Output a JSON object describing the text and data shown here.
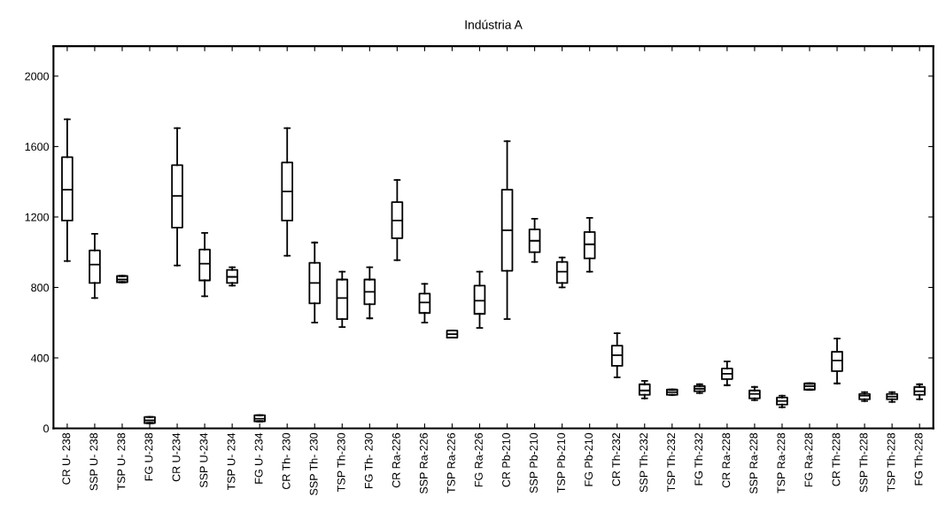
{
  "chart_data": {
    "type": "box",
    "title": "Indústria A",
    "categories": [
      "CR U- 238",
      "SSP U- 238",
      "TSP U- 238",
      "FG U-238",
      "CR U-234",
      "SSP U-234",
      "TSP U- 234",
      "FG U- 234",
      "CR Th- 230",
      "SSP Th- 230",
      "TSP Th-230",
      "FG Th- 230",
      "CR Ra-226",
      "SSP Ra-226",
      "TSP Ra-226",
      "FG Ra-226",
      "CR Pb-210",
      "SSP Pb-210",
      "TSP Pb-210",
      "FG Pb-210",
      "CR Th-232",
      "SSP Th-232",
      "TSP Th-232",
      "FG Th-232",
      "CR Ra-228",
      "SSP Ra-228",
      "TSP Ra-228",
      "FG Ra-228",
      "CR Th-228",
      "SSP Th-228",
      "TSP Th-228",
      "FG Th-228"
    ],
    "boxes": [
      {
        "low": 950,
        "q1": 1180,
        "median": 1355,
        "q3": 1540,
        "high": 1755
      },
      {
        "low": 740,
        "q1": 825,
        "median": 930,
        "q3": 1010,
        "high": 1105
      },
      {
        "low": 830,
        "q1": 830,
        "median": 845,
        "q3": 865,
        "high": 865
      },
      {
        "low": 30,
        "q1": 30,
        "median": 45,
        "q3": 65,
        "high": 65
      },
      {
        "low": 925,
        "q1": 1140,
        "median": 1320,
        "q3": 1495,
        "high": 1705
      },
      {
        "low": 750,
        "q1": 840,
        "median": 935,
        "q3": 1015,
        "high": 1110
      },
      {
        "low": 810,
        "q1": 825,
        "median": 860,
        "q3": 900,
        "high": 915
      },
      {
        "low": 40,
        "q1": 40,
        "median": 55,
        "q3": 75,
        "high": 75
      },
      {
        "low": 980,
        "q1": 1180,
        "median": 1345,
        "q3": 1510,
        "high": 1705
      },
      {
        "low": 600,
        "q1": 710,
        "median": 825,
        "q3": 940,
        "high": 1055
      },
      {
        "low": 575,
        "q1": 620,
        "median": 740,
        "q3": 845,
        "high": 890
      },
      {
        "low": 625,
        "q1": 705,
        "median": 775,
        "q3": 845,
        "high": 915
      },
      {
        "low": 955,
        "q1": 1080,
        "median": 1180,
        "q3": 1285,
        "high": 1410
      },
      {
        "low": 600,
        "q1": 655,
        "median": 715,
        "q3": 765,
        "high": 820
      },
      {
        "low": 515,
        "q1": 515,
        "median": 535,
        "q3": 555,
        "high": 555
      },
      {
        "low": 570,
        "q1": 650,
        "median": 725,
        "q3": 810,
        "high": 890
      },
      {
        "low": 620,
        "q1": 895,
        "median": 1125,
        "q3": 1355,
        "high": 1630
      },
      {
        "low": 945,
        "q1": 1000,
        "median": 1065,
        "q3": 1130,
        "high": 1190
      },
      {
        "low": 800,
        "q1": 825,
        "median": 890,
        "q3": 945,
        "high": 970
      },
      {
        "low": 890,
        "q1": 965,
        "median": 1045,
        "q3": 1115,
        "high": 1195
      },
      {
        "low": 290,
        "q1": 355,
        "median": 415,
        "q3": 470,
        "high": 540
      },
      {
        "low": 170,
        "q1": 190,
        "median": 215,
        "q3": 250,
        "high": 270
      },
      {
        "low": 190,
        "q1": 190,
        "median": 205,
        "q3": 220,
        "high": 220
      },
      {
        "low": 200,
        "q1": 210,
        "median": 225,
        "q3": 240,
        "high": 250
      },
      {
        "low": 245,
        "q1": 280,
        "median": 310,
        "q3": 340,
        "high": 380
      },
      {
        "low": 160,
        "q1": 170,
        "median": 195,
        "q3": 215,
        "high": 235
      },
      {
        "low": 120,
        "q1": 135,
        "median": 155,
        "q3": 175,
        "high": 185
      },
      {
        "low": 220,
        "q1": 220,
        "median": 240,
        "q3": 255,
        "high": 255
      },
      {
        "low": 255,
        "q1": 325,
        "median": 385,
        "q3": 435,
        "high": 510
      },
      {
        "low": 155,
        "q1": 165,
        "median": 185,
        "q3": 195,
        "high": 205
      },
      {
        "low": 150,
        "q1": 165,
        "median": 180,
        "q3": 195,
        "high": 205
      },
      {
        "low": 165,
        "q1": 190,
        "median": 210,
        "q3": 235,
        "high": 250
      }
    ],
    "color": "#000000",
    "ylim": [
      0,
      2170
    ],
    "yticks": [
      0,
      400,
      800,
      1200,
      1600,
      2000
    ],
    "grid": false
  }
}
